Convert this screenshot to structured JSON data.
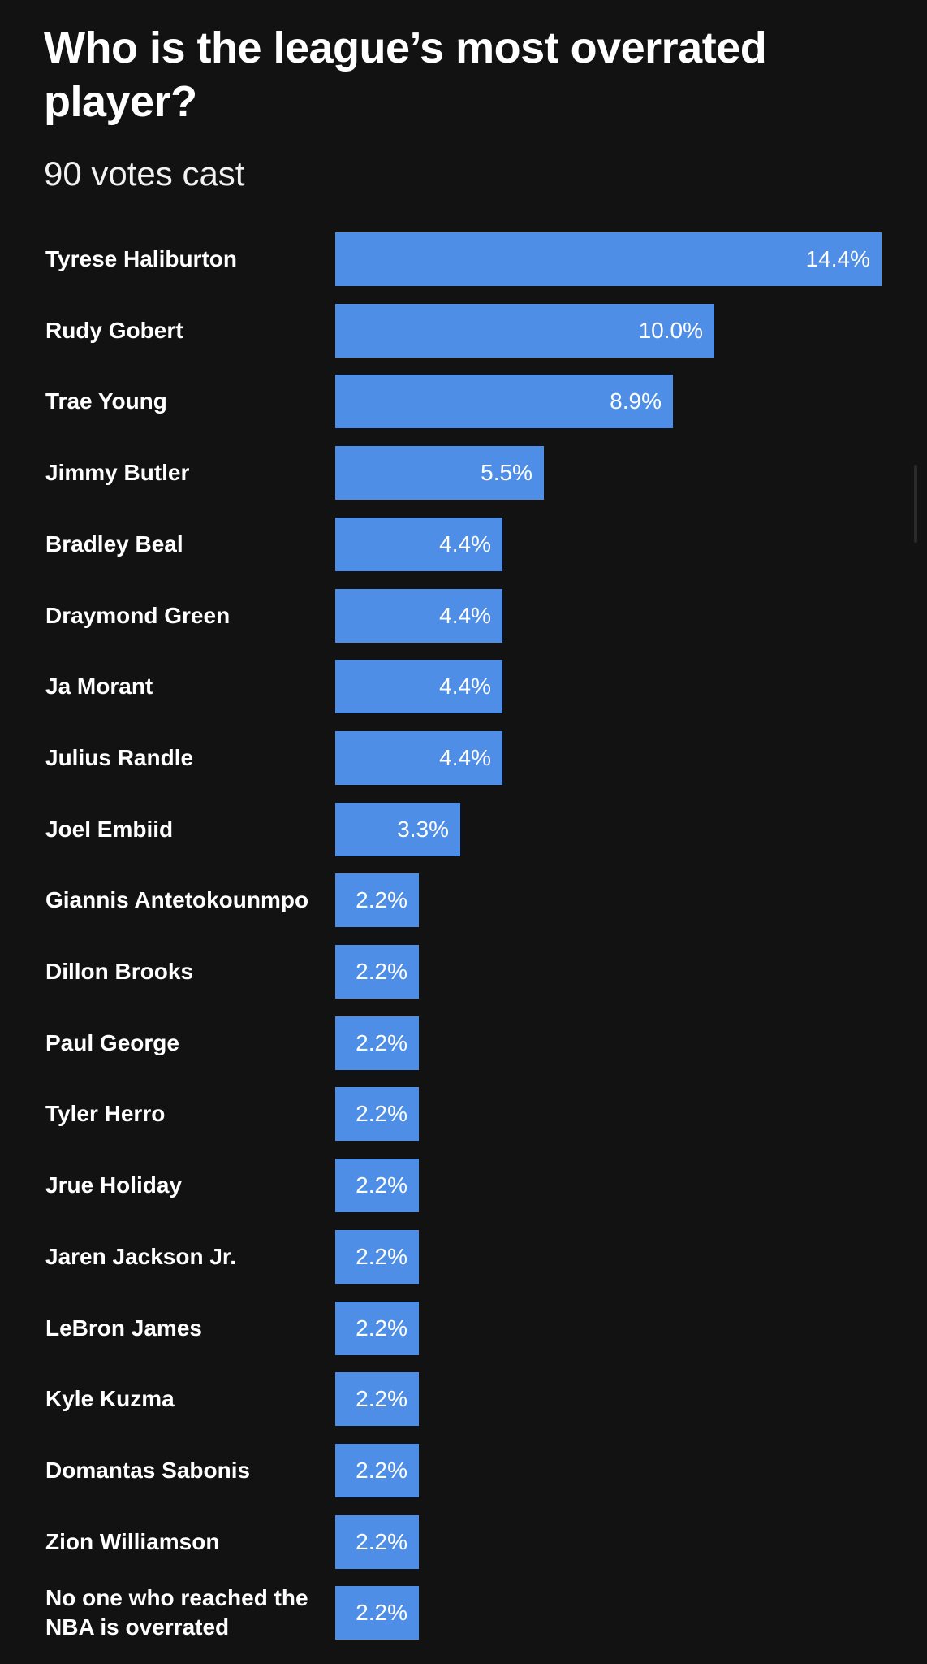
{
  "header": {
    "title": "Who is the league’s most overrated player?",
    "subtitle": "90 votes cast"
  },
  "colors": {
    "background": "#121212",
    "bar": "#4f8ee6",
    "text": "#ffffff"
  },
  "chart_data": {
    "type": "bar",
    "orientation": "horizontal",
    "title": "Who is the league’s most overrated player?",
    "subtitle": "90 votes cast",
    "xlabel": "",
    "ylabel": "",
    "xlim": [
      0,
      14.4
    ],
    "grid": false,
    "legend": "none",
    "categories": [
      "Tyrese Haliburton",
      "Rudy Gobert",
      "Trae Young",
      "Jimmy Butler",
      "Bradley Beal",
      "Draymond Green",
      "Ja Morant",
      "Julius Randle",
      "Joel Embiid",
      "Giannis Antetokounmpo",
      "Dillon Brooks",
      "Paul George",
      "Tyler Herro",
      "Jrue Holiday",
      "Jaren Jackson Jr.",
      "LeBron James",
      "Kyle Kuzma",
      "Domantas Sabonis",
      "Zion Williamson",
      "No one who reached the NBA is overrated"
    ],
    "values": [
      14.4,
      10.0,
      8.9,
      5.5,
      4.4,
      4.4,
      4.4,
      4.4,
      3.3,
      2.2,
      2.2,
      2.2,
      2.2,
      2.2,
      2.2,
      2.2,
      2.2,
      2.2,
      2.2,
      2.2
    ],
    "value_labels": [
      "14.4%",
      "10.0%",
      "8.9%",
      "5.5%",
      "4.4%",
      "4.4%",
      "4.4%",
      "4.4%",
      "3.3%",
      "2.2%",
      "2.2%",
      "2.2%",
      "2.2%",
      "2.2%",
      "2.2%",
      "2.2%",
      "2.2%",
      "2.2%",
      "2.2%",
      "2.2%"
    ]
  }
}
